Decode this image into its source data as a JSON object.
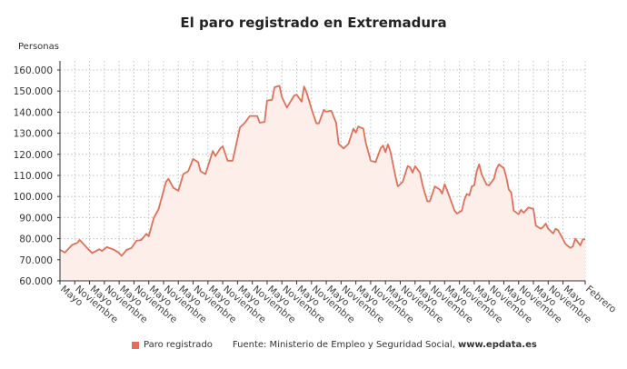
{
  "chart_data": {
    "type": "area",
    "title": "El paro registrado en Extremadura",
    "ylabel": "Personas",
    "xlabel": "",
    "ylim": [
      60000,
      160000
    ],
    "yticks": [
      60000,
      70000,
      80000,
      90000,
      100000,
      110000,
      120000,
      130000,
      140000,
      150000,
      160000
    ],
    "ytick_labels": [
      "60.000",
      "70.000",
      "80.000",
      "90.000",
      "100.000",
      "110.000",
      "120.000",
      "130.000",
      "140.000",
      "150.000",
      "160.000"
    ],
    "grid": true,
    "legend_position": "bottom",
    "colors": {
      "line": "#e0705a",
      "fill": "#fdeeea",
      "grid": "#cfcfcf"
    },
    "xticks": [
      {
        "date": "2006-05",
        "label": "Mayo"
      },
      {
        "date": "2006-11",
        "label": "Noviembre"
      },
      {
        "date": "2007-05",
        "label": "Mayo"
      },
      {
        "date": "2007-11",
        "label": "Noviembre"
      },
      {
        "date": "2008-05",
        "label": "Mayo"
      },
      {
        "date": "2008-11",
        "label": "Noviembre"
      },
      {
        "date": "2009-05",
        "label": "Mayo"
      },
      {
        "date": "2009-11",
        "label": "Noviembre"
      },
      {
        "date": "2010-05",
        "label": "Mayo"
      },
      {
        "date": "2010-11",
        "label": "Noviembre"
      },
      {
        "date": "2011-05",
        "label": "Mayo"
      },
      {
        "date": "2011-11",
        "label": "Noviembre"
      },
      {
        "date": "2012-05",
        "label": "Mayo"
      },
      {
        "date": "2012-11",
        "label": "Noviembre"
      },
      {
        "date": "2013-05",
        "label": "Mayo"
      },
      {
        "date": "2013-11",
        "label": "Noviembre"
      },
      {
        "date": "2014-05",
        "label": "Mayo"
      },
      {
        "date": "2014-11",
        "label": "Noviembre"
      },
      {
        "date": "2015-05",
        "label": "Mayo"
      },
      {
        "date": "2015-11",
        "label": "Noviembre"
      },
      {
        "date": "2016-05",
        "label": "Mayo"
      },
      {
        "date": "2016-11",
        "label": "Noviembre"
      },
      {
        "date": "2017-05",
        "label": "Mayo"
      },
      {
        "date": "2017-11",
        "label": "Noviembre"
      },
      {
        "date": "2018-05",
        "label": "Mayo"
      },
      {
        "date": "2018-11",
        "label": "Noviembre"
      },
      {
        "date": "2019-05",
        "label": "Mayo"
      },
      {
        "date": "2019-11",
        "label": "Noviembre"
      },
      {
        "date": "2020-05",
        "label": "Mayo"
      },
      {
        "date": "2020-11",
        "label": "Noviembre"
      },
      {
        "date": "2021-05",
        "label": "Mayo"
      },
      {
        "date": "2021-11",
        "label": "Noviembre"
      },
      {
        "date": "2022-05",
        "label": "Mayo"
      },
      {
        "date": "2022-11",
        "label": "Noviembre"
      },
      {
        "date": "2023-05",
        "label": "Mayo"
      },
      {
        "date": "2024-02",
        "label": "Febrero"
      }
    ],
    "series": [
      {
        "name": "Paro registrado",
        "points": [
          [
            "2006-05",
            74700
          ],
          [
            "2006-07",
            73400
          ],
          [
            "2006-10",
            77100
          ],
          [
            "2006-12",
            78000
          ],
          [
            "2007-01",
            79400
          ],
          [
            "2007-04",
            75600
          ],
          [
            "2007-06",
            73200
          ],
          [
            "2007-09",
            75000
          ],
          [
            "2007-10",
            74200
          ],
          [
            "2007-12",
            76000
          ],
          [
            "2008-03",
            74700
          ],
          [
            "2008-05",
            73200
          ],
          [
            "2008-06",
            71800
          ],
          [
            "2008-08",
            74700
          ],
          [
            "2008-10",
            75600
          ],
          [
            "2008-12",
            79000
          ],
          [
            "2009-02",
            79400
          ],
          [
            "2009-04",
            82300
          ],
          [
            "2009-05",
            81100
          ],
          [
            "2009-07",
            89700
          ],
          [
            "2009-09",
            94000
          ],
          [
            "2009-12",
            107000
          ],
          [
            "2010-01",
            108400
          ],
          [
            "2010-03",
            104100
          ],
          [
            "2010-05",
            102700
          ],
          [
            "2010-07",
            110600
          ],
          [
            "2010-09",
            112000
          ],
          [
            "2010-11",
            117800
          ],
          [
            "2011-01",
            116300
          ],
          [
            "2011-02",
            112000
          ],
          [
            "2011-04",
            110600
          ],
          [
            "2011-07",
            121600
          ],
          [
            "2011-08",
            119200
          ],
          [
            "2011-10",
            122800
          ],
          [
            "2011-11",
            123800
          ],
          [
            "2012-01",
            117000
          ],
          [
            "2012-03",
            117000
          ],
          [
            "2012-06",
            132800
          ],
          [
            "2012-08",
            135000
          ],
          [
            "2012-10",
            138200
          ],
          [
            "2013-01",
            138200
          ],
          [
            "2013-02",
            135000
          ],
          [
            "2013-04",
            135400
          ],
          [
            "2013-05",
            145500
          ],
          [
            "2013-07",
            145800
          ],
          [
            "2013-08",
            151800
          ],
          [
            "2013-10",
            152500
          ],
          [
            "2013-11",
            147200
          ],
          [
            "2014-01",
            142200
          ],
          [
            "2014-04",
            147900
          ],
          [
            "2014-05",
            148300
          ],
          [
            "2014-07",
            145000
          ],
          [
            "2014-08",
            152200
          ],
          [
            "2014-09",
            149400
          ],
          [
            "2014-11",
            141500
          ],
          [
            "2015-01",
            134700
          ],
          [
            "2015-02",
            134700
          ],
          [
            "2015-04",
            141100
          ],
          [
            "2015-05",
            140200
          ],
          [
            "2015-07",
            140700
          ],
          [
            "2015-09",
            135000
          ],
          [
            "2015-10",
            125000
          ],
          [
            "2015-12",
            122800
          ],
          [
            "2016-02",
            125000
          ],
          [
            "2016-04",
            132200
          ],
          [
            "2016-05",
            130300
          ],
          [
            "2016-06",
            133200
          ],
          [
            "2016-08",
            132200
          ],
          [
            "2016-09",
            125600
          ],
          [
            "2016-11",
            117000
          ],
          [
            "2017-01",
            116300
          ],
          [
            "2017-03",
            122800
          ],
          [
            "2017-04",
            124200
          ],
          [
            "2017-05",
            121000
          ],
          [
            "2017-06",
            124700
          ],
          [
            "2017-07",
            121400
          ],
          [
            "2017-09",
            109800
          ],
          [
            "2017-10",
            104800
          ],
          [
            "2017-12",
            107000
          ],
          [
            "2018-02",
            114400
          ],
          [
            "2018-03",
            113900
          ],
          [
            "2018-04",
            111300
          ],
          [
            "2018-05",
            114400
          ],
          [
            "2018-07",
            111300
          ],
          [
            "2018-08",
            105600
          ],
          [
            "2018-10",
            97700
          ],
          [
            "2018-11",
            97700
          ],
          [
            "2019-01",
            104800
          ],
          [
            "2019-03",
            103300
          ],
          [
            "2019-04",
            101400
          ],
          [
            "2019-05",
            105800
          ],
          [
            "2019-06",
            103000
          ],
          [
            "2019-09",
            93300
          ],
          [
            "2019-10",
            91900
          ],
          [
            "2019-12",
            93300
          ],
          [
            "2020-01",
            98400
          ],
          [
            "2020-02",
            101200
          ],
          [
            "2020-03",
            100500
          ],
          [
            "2020-04",
            104800
          ],
          [
            "2020-05",
            105300
          ],
          [
            "2020-06",
            112000
          ],
          [
            "2020-07",
            115300
          ],
          [
            "2020-08",
            110600
          ],
          [
            "2020-10",
            105600
          ],
          [
            "2020-11",
            105300
          ],
          [
            "2021-01",
            108400
          ],
          [
            "2021-02",
            113000
          ],
          [
            "2021-03",
            115200
          ],
          [
            "2021-05",
            113400
          ],
          [
            "2021-06",
            109100
          ],
          [
            "2021-07",
            103300
          ],
          [
            "2021-08",
            101900
          ],
          [
            "2021-09",
            93300
          ],
          [
            "2021-11",
            91600
          ],
          [
            "2021-12",
            93700
          ],
          [
            "2022-01",
            92300
          ],
          [
            "2022-03",
            94800
          ],
          [
            "2022-05",
            94100
          ],
          [
            "2022-06",
            86200
          ],
          [
            "2022-08",
            84700
          ],
          [
            "2022-09",
            85700
          ],
          [
            "2022-10",
            87200
          ],
          [
            "2022-11",
            84700
          ],
          [
            "2023-01",
            82500
          ],
          [
            "2023-02",
            84700
          ],
          [
            "2023-03",
            84000
          ],
          [
            "2023-05",
            79700
          ],
          [
            "2023-06",
            77500
          ],
          [
            "2023-08",
            75600
          ],
          [
            "2023-09",
            76400
          ],
          [
            "2023-10",
            80000
          ],
          [
            "2023-12",
            76800
          ],
          [
            "2024-01",
            79700
          ],
          [
            "2024-02",
            79700
          ]
        ]
      }
    ]
  },
  "legend": {
    "label": "Paro registrado",
    "source_prefix": "Fuente: Ministerio de Empleo y Seguridad Social, ",
    "source_site": "www.epdata.es"
  }
}
